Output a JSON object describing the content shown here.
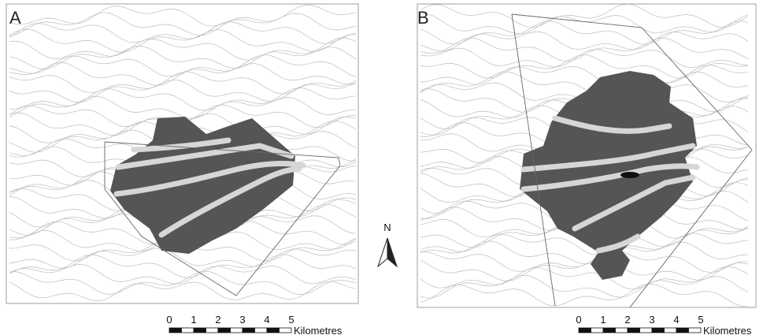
{
  "panels": [
    {
      "label": "A",
      "scale": {
        "ticks": [
          "0",
          "1",
          "2",
          "3",
          "4",
          "5"
        ],
        "unit": "Kilometres"
      }
    },
    {
      "label": "B",
      "scale": {
        "ticks": [
          "0",
          "1",
          "2",
          "3",
          "4",
          "5"
        ],
        "unit": "Kilometres"
      }
    }
  ],
  "north": "N"
}
